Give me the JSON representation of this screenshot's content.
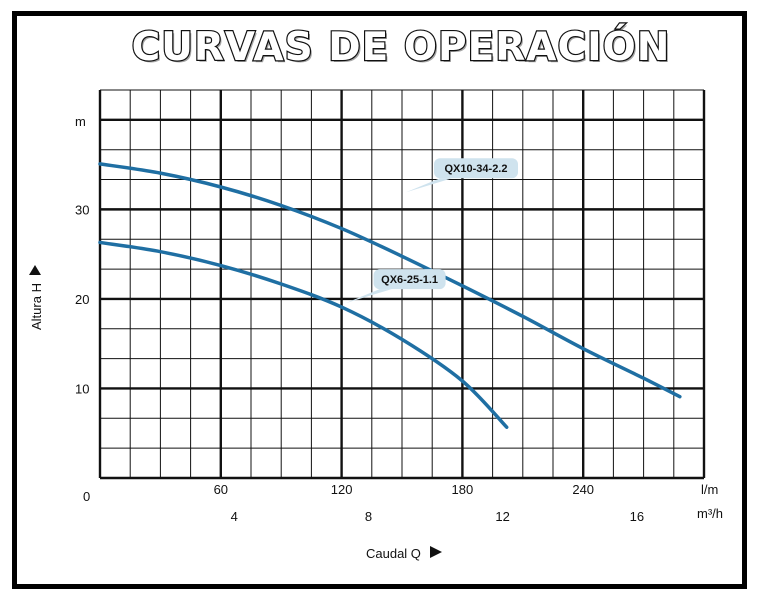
{
  "chart_data": {
    "type": "line",
    "title": "CURVAS DE OPERACIÓN",
    "xlabel": "Caudal  Q",
    "ylabel": "Altura  H",
    "y_unit": "m",
    "x_units": [
      "l/m",
      "m³/h"
    ],
    "x_lpm_ticks": [
      "60",
      "120",
      "180",
      "240"
    ],
    "x_m3h_ticks": [
      "4",
      "8",
      "12",
      "16"
    ],
    "y_ticks": [
      "10",
      "20",
      "30"
    ],
    "origin_label": "0",
    "xlim_lpm": [
      0,
      300
    ],
    "ylim": [
      0,
      42
    ],
    "grid": true,
    "series": [
      {
        "name": "QX10-34-2.2",
        "x": [
          0,
          30,
          60,
          90,
          120,
          150,
          180,
          210,
          240,
          270,
          288
        ],
        "y": [
          34,
          33,
          31.5,
          29.5,
          27,
          24,
          20.8,
          17.5,
          14,
          10.8,
          8.8
        ]
      },
      {
        "name": "QX6-25-1.1",
        "x": [
          0,
          30,
          60,
          90,
          120,
          150,
          180,
          202
        ],
        "y": [
          25.5,
          24.5,
          23,
          21,
          18.5,
          15,
          10.5,
          5.5
        ]
      }
    ]
  }
}
